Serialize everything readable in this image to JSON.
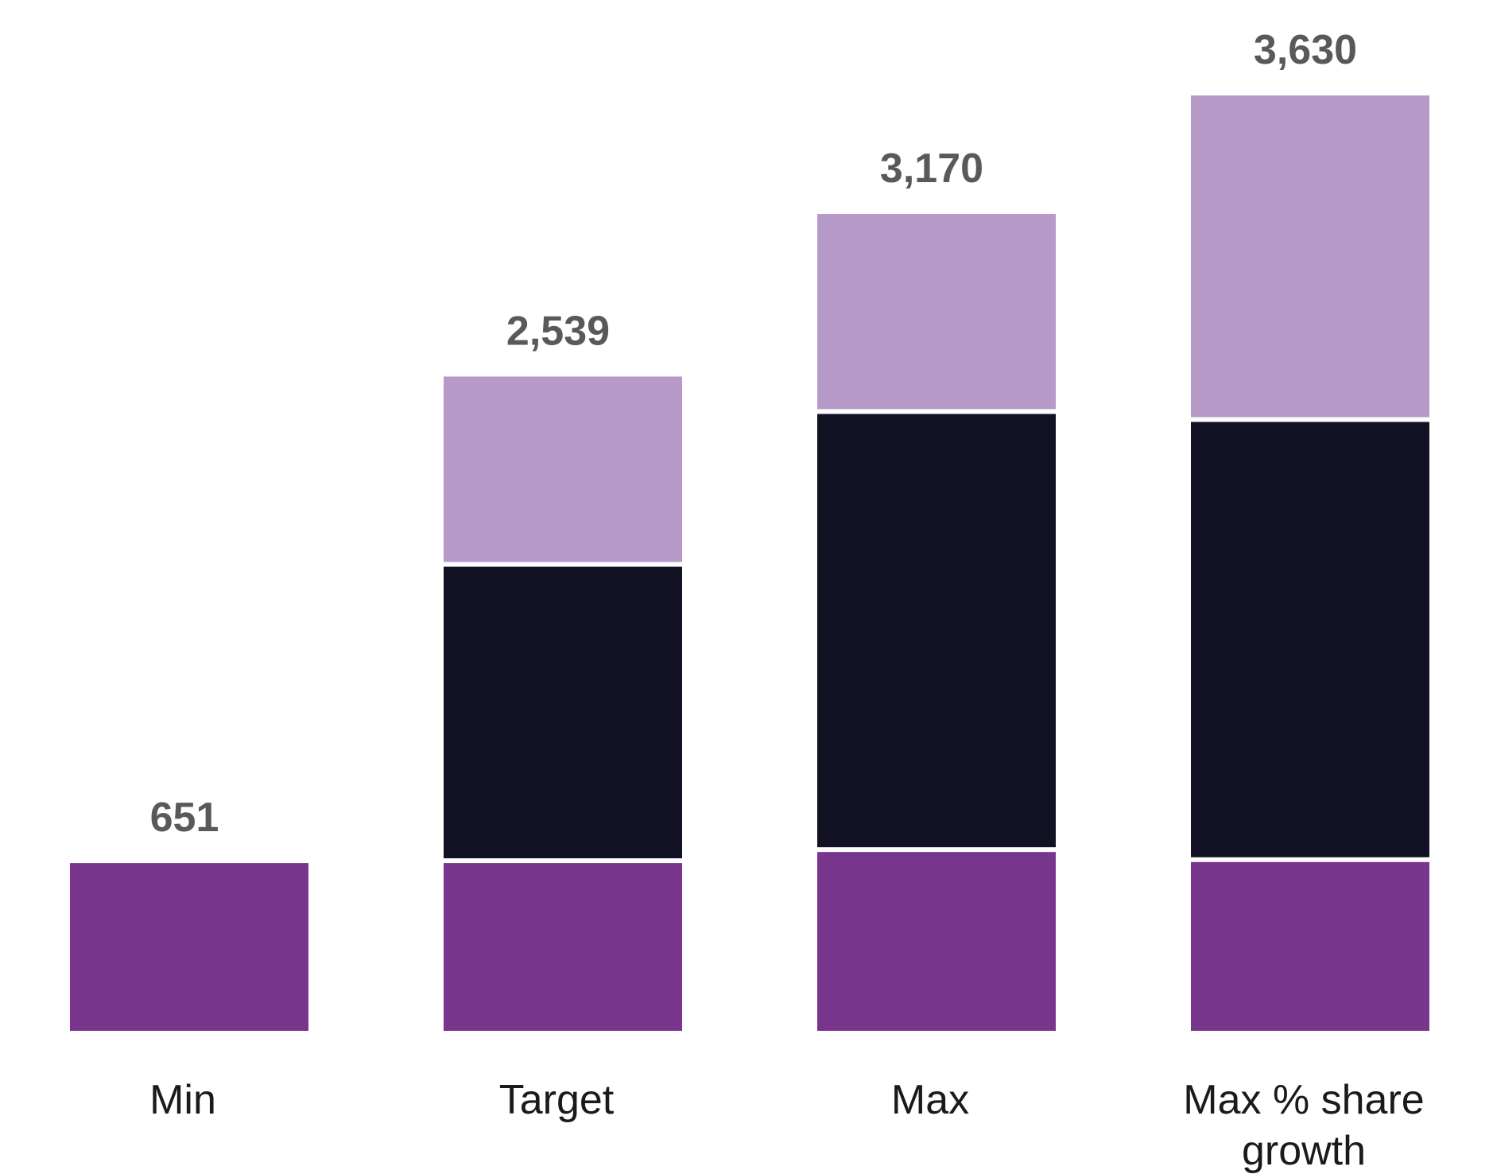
{
  "chart_data": {
    "type": "bar",
    "stacked": true,
    "title": "",
    "xlabel": "",
    "ylabel": "",
    "ylim": [
      0,
      3630
    ],
    "grid": false,
    "legend": "none",
    "categories": [
      "Min",
      "Target",
      "Max",
      "Max % share growth"
    ],
    "series": [
      {
        "name": "segment-bottom",
        "color": "#77368b",
        "values": [
          651,
          651,
          694,
          655
        ]
      },
      {
        "name": "segment-middle",
        "color": "#121224",
        "values": [
          0,
          1150,
          1700,
          1708
        ]
      },
      {
        "name": "segment-top",
        "color": "#b799c8",
        "values": [
          0,
          738,
          776,
          1267
        ]
      }
    ],
    "totals": [
      651,
      2539,
      3170,
      3630
    ],
    "total_labels": [
      "651",
      "2,539",
      "3,170",
      "3,630"
    ]
  }
}
